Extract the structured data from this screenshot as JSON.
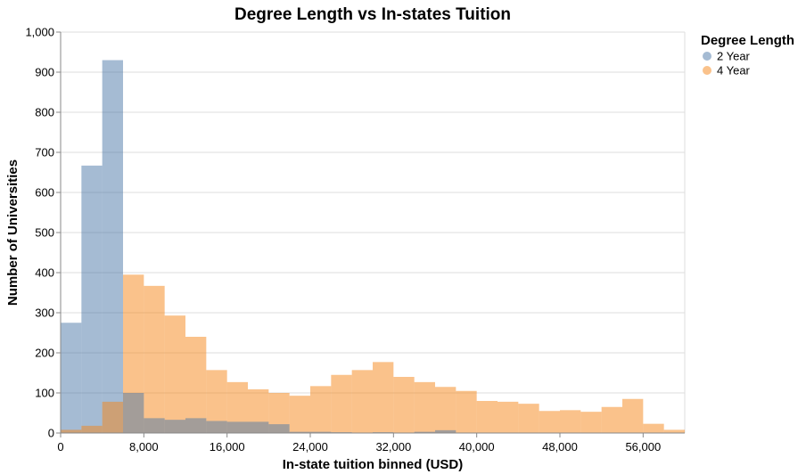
{
  "chart_data": {
    "type": "bar",
    "title": "Degree Length vs In-states Tuition",
    "xlabel": "In-state tuition binned (USD)",
    "ylabel": "Number of Universities",
    "xlim": [
      0,
      60000
    ],
    "ylim": [
      0,
      1000
    ],
    "x_tick_values": [
      0,
      8000,
      16000,
      24000,
      32000,
      40000,
      48000,
      56000
    ],
    "x_tick_labels": [
      "0",
      "8,000",
      "16,000",
      "24,000",
      "32,000",
      "40,000",
      "48,000",
      "56,000"
    ],
    "y_tick_values": [
      0,
      100,
      200,
      300,
      400,
      500,
      600,
      700,
      800,
      900,
      1000
    ],
    "y_tick_labels": [
      "0",
      "100",
      "200",
      "300",
      "400",
      "500",
      "600",
      "700",
      "800",
      "900",
      "1,000"
    ],
    "bin_width": 2000,
    "grid": true,
    "legend": {
      "title": "Degree Length",
      "position": "top-right"
    },
    "series": [
      {
        "name": "2 Year",
        "color": "#4c78a8",
        "opacity": 0.5,
        "bins": [
          {
            "x0": 0,
            "x1": 2000,
            "value": 275
          },
          {
            "x0": 2000,
            "x1": 4000,
            "value": 667
          },
          {
            "x0": 4000,
            "x1": 6000,
            "value": 930
          }
        ]
      },
      {
        "name": "4 Year",
        "color": "#f58518",
        "opacity": 0.5,
        "bins": [
          {
            "x0": 0,
            "x1": 2000,
            "value": 8
          },
          {
            "x0": 2000,
            "x1": 4000,
            "value": 18
          },
          {
            "x0": 4000,
            "x1": 6000,
            "value": 78
          },
          {
            "x0": 6000,
            "x1": 8000,
            "value": 395
          },
          {
            "x0": 8000,
            "x1": 10000,
            "value": 367
          },
          {
            "x0": 10000,
            "x1": 12000,
            "value": 293
          },
          {
            "x0": 12000,
            "x1": 14000,
            "value": 240
          },
          {
            "x0": 14000,
            "x1": 16000,
            "value": 157
          },
          {
            "x0": 16000,
            "x1": 18000,
            "value": 127
          },
          {
            "x0": 18000,
            "x1": 20000,
            "value": 109
          },
          {
            "x0": 20000,
            "x1": 22000,
            "value": 100
          },
          {
            "x0": 22000,
            "x1": 24000,
            "value": 93
          },
          {
            "x0": 24000,
            "x1": 26000,
            "value": 117
          },
          {
            "x0": 26000,
            "x1": 28000,
            "value": 145
          },
          {
            "x0": 28000,
            "x1": 30000,
            "value": 157
          },
          {
            "x0": 30000,
            "x1": 32000,
            "value": 177
          },
          {
            "x0": 32000,
            "x1": 34000,
            "value": 140
          },
          {
            "x0": 34000,
            "x1": 36000,
            "value": 127
          },
          {
            "x0": 36000,
            "x1": 38000,
            "value": 115
          },
          {
            "x0": 38000,
            "x1": 40000,
            "value": 105
          },
          {
            "x0": 40000,
            "x1": 42000,
            "value": 80
          },
          {
            "x0": 42000,
            "x1": 44000,
            "value": 78
          },
          {
            "x0": 44000,
            "x1": 46000,
            "value": 73
          },
          {
            "x0": 46000,
            "x1": 48000,
            "value": 55
          },
          {
            "x0": 48000,
            "x1": 50000,
            "value": 57
          },
          {
            "x0": 50000,
            "x1": 52000,
            "value": 53
          },
          {
            "x0": 52000,
            "x1": 54000,
            "value": 65
          },
          {
            "x0": 54000,
            "x1": 56000,
            "value": 85
          },
          {
            "x0": 56000,
            "x1": 58000,
            "value": 23
          },
          {
            "x0": 58000,
            "x1": 60000,
            "value": 8
          }
        ]
      },
      {
        "name": "2 Year (tail)",
        "legend": false,
        "color": "#4c78a8",
        "opacity": 0.5,
        "bins": [
          {
            "x0": 6000,
            "x1": 8000,
            "value": 100
          },
          {
            "x0": 8000,
            "x1": 10000,
            "value": 37
          },
          {
            "x0": 10000,
            "x1": 12000,
            "value": 33
          },
          {
            "x0": 12000,
            "x1": 14000,
            "value": 37
          },
          {
            "x0": 14000,
            "x1": 16000,
            "value": 30
          },
          {
            "x0": 16000,
            "x1": 18000,
            "value": 28
          },
          {
            "x0": 18000,
            "x1": 20000,
            "value": 28
          },
          {
            "x0": 20000,
            "x1": 22000,
            "value": 22
          },
          {
            "x0": 22000,
            "x1": 24000,
            "value": 3
          },
          {
            "x0": 24000,
            "x1": 26000,
            "value": 3
          },
          {
            "x0": 26000,
            "x1": 28000,
            "value": 2
          },
          {
            "x0": 30000,
            "x1": 32000,
            "value": 2
          },
          {
            "x0": 34000,
            "x1": 36000,
            "value": 3
          },
          {
            "x0": 36000,
            "x1": 38000,
            "value": 7
          }
        ]
      }
    ]
  }
}
